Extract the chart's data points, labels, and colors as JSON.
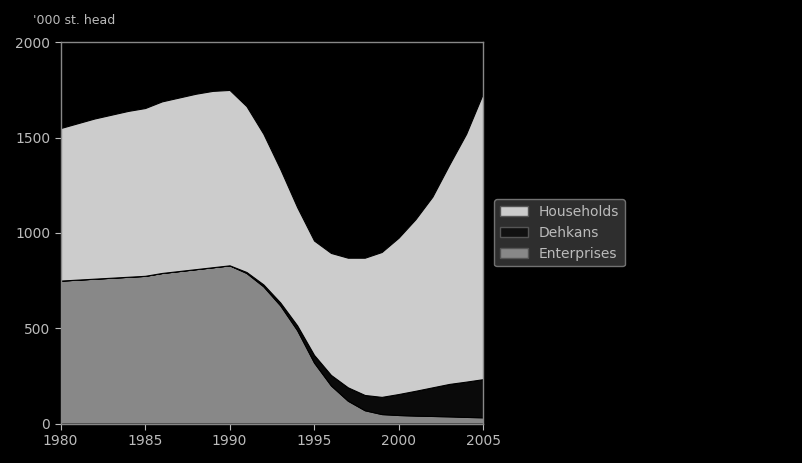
{
  "years": [
    1980,
    1981,
    1982,
    1983,
    1984,
    1985,
    1986,
    1987,
    1988,
    1989,
    1990,
    1991,
    1992,
    1993,
    1994,
    1995,
    1996,
    1997,
    1998,
    1999,
    2000,
    2001,
    2002,
    2003,
    2004,
    2005
  ],
  "enterprises": [
    750,
    755,
    760,
    765,
    770,
    775,
    790,
    800,
    810,
    820,
    830,
    790,
    720,
    620,
    490,
    320,
    200,
    120,
    70,
    50,
    45,
    42,
    40,
    38,
    35,
    33
  ],
  "dehkans": [
    0,
    0,
    0,
    0,
    0,
    0,
    0,
    0,
    0,
    0,
    0,
    5,
    10,
    15,
    25,
    40,
    55,
    70,
    80,
    90,
    110,
    130,
    150,
    170,
    185,
    200
  ],
  "households": [
    800,
    820,
    840,
    855,
    870,
    880,
    900,
    910,
    920,
    925,
    920,
    870,
    790,
    700,
    620,
    600,
    640,
    680,
    720,
    760,
    820,
    900,
    1000,
    1150,
    1300,
    1500
  ],
  "color_enterprises": "#888888",
  "color_dehkans": "#0a0a0a",
  "color_households": "#cccccc",
  "ylabel": "'000 st. head",
  "ylim": [
    0,
    2000
  ],
  "xlim": [
    1980,
    2005
  ],
  "yticks": [
    0,
    500,
    1000,
    1500,
    2000
  ],
  "xticks": [
    1980,
    1985,
    1990,
    1995,
    2000,
    2005
  ],
  "plot_bg_color": "#000000",
  "fig_bg_color": "#000000",
  "legend_labels": [
    "Households",
    "Dehkans",
    "Enterprises"
  ],
  "legend_colors": [
    "#cccccc",
    "#111111",
    "#888888"
  ],
  "legend_facecolor": "#3a3a3a",
  "legend_edgecolor": "#888888",
  "tick_color": "#bbbbbb",
  "spine_color": "#888888"
}
